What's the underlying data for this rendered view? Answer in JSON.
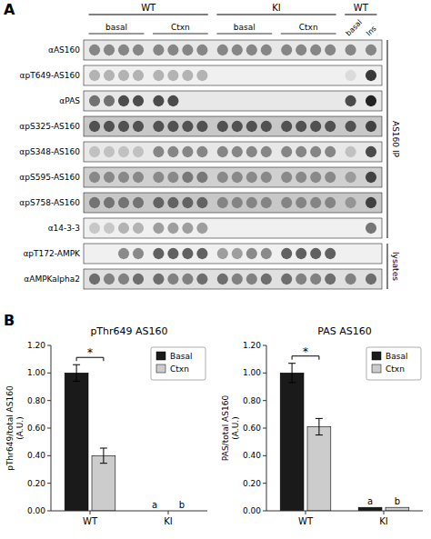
{
  "chart_data": [
    {
      "type": "blot",
      "panel_label": "A",
      "rows": [
        "αAS160",
        "αpT649-AS160",
        "αPAS",
        "αpS325-AS160",
        "αpS348-AS160",
        "αpS595-AS160",
        "αpS758-AS160",
        "α14-3-3",
        "αpT172-AMPK",
        "αAMPKalpha2"
      ],
      "row_groups": [
        "AS160 IP",
        "AS160 IP",
        "AS160 IP",
        "AS160 IP",
        "AS160 IP",
        "AS160 IP",
        "AS160 IP",
        "AS160 IP",
        "lysates",
        "lysates"
      ],
      "categories": [
        [
          "WT",
          "basal"
        ],
        [
          "WT",
          "basal"
        ],
        [
          "WT",
          "basal"
        ],
        [
          "WT",
          "basal"
        ],
        [
          "WT",
          "Ctxn"
        ],
        [
          "WT",
          "Ctxn"
        ],
        [
          "WT",
          "Ctxn"
        ],
        [
          "WT",
          "Ctxn"
        ],
        [
          "KI",
          "basal"
        ],
        [
          "KI",
          "basal"
        ],
        [
          "KI",
          "basal"
        ],
        [
          "KI",
          "basal"
        ],
        [
          "KI",
          "Ctxn"
        ],
        [
          "KI",
          "Ctxn"
        ],
        [
          "KI",
          "Ctxn"
        ],
        [
          "KI",
          "Ctxn"
        ],
        [
          "WT",
          "basal"
        ],
        [
          "WT",
          "Ins"
        ]
      ],
      "values": [
        [
          0.5,
          0.5,
          0.5,
          0.5,
          0.5,
          0.5,
          0.5,
          0.5,
          0.5,
          0.5,
          0.5,
          0.5,
          0.5,
          0.5,
          0.5,
          0.5,
          0.5,
          0.5
        ],
        [
          0.3,
          0.3,
          0.3,
          0.3,
          0.3,
          0.3,
          0.3,
          0.3,
          0.0,
          0.0,
          0.0,
          0.0,
          0.0,
          0.0,
          0.0,
          0.0,
          0.1,
          0.9
        ],
        [
          0.6,
          0.6,
          0.8,
          0.8,
          0.8,
          0.8,
          0.0,
          0.0,
          0.0,
          0.0,
          0.0,
          0.0,
          0.0,
          0.0,
          0.0,
          0.0,
          0.8,
          1.0
        ],
        [
          0.7,
          0.7,
          0.7,
          0.7,
          0.7,
          0.7,
          0.7,
          0.7,
          0.7,
          0.7,
          0.7,
          0.7,
          0.7,
          0.7,
          0.7,
          0.7,
          0.7,
          0.8
        ],
        [
          0.2,
          0.2,
          0.2,
          0.2,
          0.5,
          0.5,
          0.5,
          0.5,
          0.5,
          0.5,
          0.5,
          0.5,
          0.5,
          0.5,
          0.5,
          0.5,
          0.2,
          0.8
        ],
        [
          0.4,
          0.4,
          0.4,
          0.4,
          0.4,
          0.4,
          0.5,
          0.5,
          0.4,
          0.4,
          0.4,
          0.4,
          0.4,
          0.4,
          0.4,
          0.4,
          0.3,
          0.8
        ],
        [
          0.5,
          0.5,
          0.5,
          0.5,
          0.6,
          0.6,
          0.6,
          0.6,
          0.4,
          0.4,
          0.4,
          0.4,
          0.4,
          0.4,
          0.4,
          0.4,
          0.3,
          0.8
        ],
        [
          0.2,
          0.2,
          0.3,
          0.3,
          0.4,
          0.4,
          0.4,
          0.4,
          0.0,
          0.0,
          0.0,
          0.0,
          0.0,
          0.0,
          0.0,
          0.0,
          0.0,
          0.6
        ],
        [
          0.0,
          0.0,
          0.5,
          0.5,
          0.7,
          0.7,
          0.7,
          0.7,
          0.4,
          0.4,
          0.5,
          0.5,
          0.7,
          0.7,
          0.7,
          0.7,
          0.0,
          0.0
        ],
        [
          0.6,
          0.5,
          0.5,
          0.6,
          0.6,
          0.5,
          0.5,
          0.6,
          0.6,
          0.5,
          0.5,
          0.6,
          0.6,
          0.5,
          0.5,
          0.6,
          0.5,
          0.6
        ]
      ],
      "colors": [
        "#e8e8e8",
        "#f0f0f0",
        "#e8e8e8",
        "#c8c8c8",
        "#e8e8e8",
        "#d0d0d0",
        "#c8c8c8",
        "#f0f0f0",
        "#f0f0f0",
        "#e0e0e0"
      ]
    },
    {
      "type": "bar",
      "panel_label": "B",
      "title": "pThr649 AS160",
      "ylabel": "pThr649/total AS160\n(A.U.)",
      "categories": [
        "WT",
        "KI"
      ],
      "series": [
        {
          "name": "Basal",
          "color": "#1a1a1a",
          "values": [
            1.0,
            0.0
          ],
          "errors": [
            0.06,
            null
          ],
          "labels": [
            null,
            "a"
          ]
        },
        {
          "name": "Ctxn",
          "color": "#cccccc",
          "values": [
            0.4,
            0.0
          ],
          "errors": [
            0.055,
            null
          ],
          "labels": [
            null,
            "b"
          ]
        }
      ],
      "significance": [
        {
          "category": "WT",
          "label": "*"
        }
      ],
      "ylim": [
        0.0,
        1.2
      ],
      "yticks": [
        {
          "value": 0.0,
          "label": "0.00"
        },
        {
          "value": 0.2,
          "label": "0.20"
        },
        {
          "value": 0.4,
          "label": "0.40"
        },
        {
          "value": 0.6,
          "label": "0.60"
        },
        {
          "value": 0.8,
          "label": "0.80"
        },
        {
          "value": 1.0,
          "label": "1.00"
        },
        {
          "value": 1.2,
          "label": "1.20"
        }
      ],
      "legend": "upper right",
      "grid": false
    },
    {
      "type": "bar",
      "title": "PAS AS160",
      "ylabel": "PAS/total AS160\n(A.U.)",
      "categories": [
        "WT",
        "KI"
      ],
      "series": [
        {
          "name": "Basal",
          "color": "#1a1a1a",
          "values": [
            1.0,
            0.025
          ],
          "errors": [
            0.07,
            null
          ],
          "labels": [
            null,
            "a"
          ]
        },
        {
          "name": "Ctxn",
          "color": "#cccccc",
          "values": [
            0.61,
            0.025
          ],
          "errors": [
            0.06,
            null
          ],
          "labels": [
            null,
            "b"
          ]
        }
      ],
      "significance": [
        {
          "category": "WT",
          "label": "*"
        }
      ],
      "ylim": [
        0.0,
        1.2
      ],
      "yticks": [
        {
          "value": 0.0,
          "label": "0.00"
        },
        {
          "value": 0.2,
          "label": "0.20"
        },
        {
          "value": 0.4,
          "label": "0.40"
        },
        {
          "value": 0.6,
          "label": "0.60"
        },
        {
          "value": 0.8,
          "label": "0.80"
        },
        {
          "value": 1.0,
          "label": "1.00"
        },
        {
          "value": 1.2,
          "label": "1.20"
        }
      ],
      "legend": "upper right",
      "grid": false
    }
  ]
}
